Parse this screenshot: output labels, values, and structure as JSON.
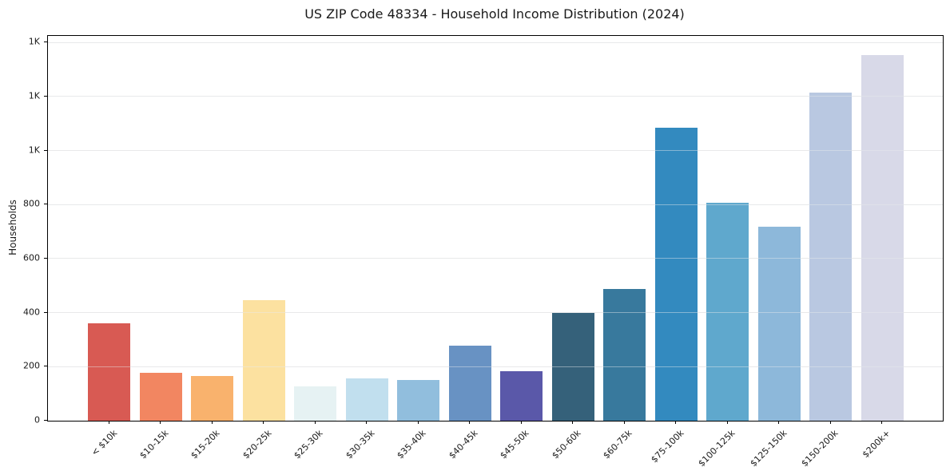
{
  "chart_data": {
    "type": "bar",
    "title": "US ZIP Code 48334 - Household Income Distribution (2024)",
    "xlabel": "",
    "ylabel": "Households",
    "categories": [
      "< $10k",
      "$10-15k",
      "$15-20k",
      "$20-25k",
      "$25-30k",
      "$30-35k",
      "$35-40k",
      "$40-45k",
      "$45-50k",
      "$50-60k",
      "$60-75k",
      "$75-100k",
      "$100-125k",
      "$125-150k",
      "$150-200k",
      "$200k+"
    ],
    "values": [
      361,
      178,
      165,
      445,
      127,
      158,
      150,
      277,
      182,
      398,
      487,
      1085,
      807,
      719,
      1215,
      1353
    ],
    "bar_colors": [
      "#d85a53",
      "#f28661",
      "#f9b26d",
      "#fce1a0",
      "#e6f2f3",
      "#c1dfee",
      "#91bedd",
      "#6892c3",
      "#5a58a9",
      "#35617a",
      "#38799d",
      "#338abf",
      "#5fa8cd",
      "#8db8da",
      "#b9c8e1",
      "#d8d9e8"
    ],
    "ylim": [
      0,
      1424
    ],
    "yticks": {
      "values": [
        0,
        200,
        400,
        600,
        800,
        1000,
        1200,
        1400
      ],
      "labels": [
        "0",
        "200",
        "400",
        "600",
        "800",
        "1K",
        "1K",
        "1K"
      ]
    },
    "grid": true,
    "legend": false,
    "gridline_color": "#e8e8e8",
    "spine_color": "#000000",
    "text_color": "#1a1a1a",
    "background_color": "#ffffff"
  }
}
